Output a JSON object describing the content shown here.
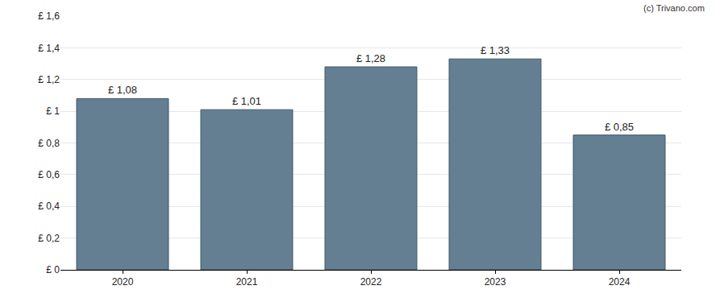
{
  "chart_data": {
    "type": "bar",
    "categories": [
      "2020",
      "2021",
      "2022",
      "2023",
      "2024"
    ],
    "values": [
      1.08,
      1.01,
      1.28,
      1.33,
      0.85
    ],
    "value_labels": [
      "£ 1,08",
      "£ 1,01",
      "£ 1,28",
      "£ 1,33",
      "£ 0,85"
    ],
    "data_labels": true,
    "color": "#647f91",
    "ylim": [
      0,
      1.6
    ],
    "yticks": [
      {
        "value": 0,
        "label": "£ 0"
      },
      {
        "value": 0.2,
        "label": "£ 0,2"
      },
      {
        "value": 0.4,
        "label": "£ 0,4"
      },
      {
        "value": 0.6,
        "label": "£ 0,6"
      },
      {
        "value": 0.8,
        "label": "£ 0,8"
      },
      {
        "value": 1,
        "label": "£ 1"
      },
      {
        "value": 1.2,
        "label": "£ 1,2"
      },
      {
        "value": 1.4,
        "label": "£ 1,4"
      },
      {
        "value": 1.6,
        "label": "£ 1,6"
      }
    ],
    "grid": true,
    "annotations": [
      "(c) Trivano.com"
    ]
  }
}
